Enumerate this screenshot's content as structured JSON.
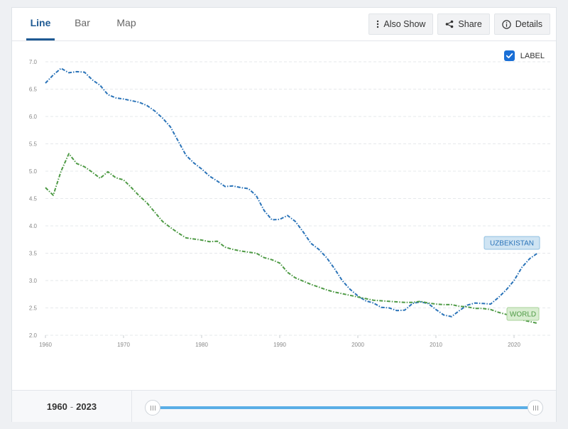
{
  "tabs": [
    {
      "label": "Line",
      "active": true
    },
    {
      "label": "Bar",
      "active": false
    },
    {
      "label": "Map",
      "active": false
    }
  ],
  "actions": {
    "also_show": "Also Show",
    "share": "Share",
    "details": "Details"
  },
  "label_toggle": {
    "text": "LABEL",
    "checked": true
  },
  "range": {
    "start": "1960",
    "end": "2023",
    "separator": "-"
  },
  "chart_data": {
    "type": "line",
    "title": "",
    "xlabel": "",
    "ylabel": "",
    "xlim": [
      1960,
      2023
    ],
    "ylim": [
      2.0,
      7.0
    ],
    "x_ticks": [
      "1960",
      "1970",
      "1980",
      "1990",
      "2000",
      "2010",
      "2020"
    ],
    "y_ticks": [
      "2.0",
      "2.5",
      "3.0",
      "3.5",
      "4.0",
      "4.5",
      "5.0",
      "5.5",
      "6.0",
      "6.5",
      "7.0"
    ],
    "grid": true,
    "legend": "inline labels at line ends",
    "x": [
      1960,
      1961,
      1962,
      1963,
      1964,
      1965,
      1966,
      1967,
      1968,
      1969,
      1970,
      1971,
      1972,
      1973,
      1974,
      1975,
      1976,
      1977,
      1978,
      1979,
      1980,
      1981,
      1982,
      1983,
      1984,
      1985,
      1986,
      1987,
      1988,
      1989,
      1990,
      1991,
      1992,
      1993,
      1994,
      1995,
      1996,
      1997,
      1998,
      1999,
      2000,
      2001,
      2002,
      2003,
      2004,
      2005,
      2006,
      2007,
      2008,
      2009,
      2010,
      2011,
      2012,
      2013,
      2014,
      2015,
      2016,
      2017,
      2018,
      2019,
      2020,
      2021,
      2022,
      2023
    ],
    "series": [
      {
        "name": "UZBEKISTAN",
        "color": "#2a73b8",
        "label_bg": "#cfe4f3",
        "label_border": "#8fbfe0",
        "label_text": "#2a73b8",
        "values": [
          6.61,
          6.76,
          6.88,
          6.8,
          6.82,
          6.81,
          6.67,
          6.57,
          6.4,
          6.34,
          6.32,
          6.29,
          6.26,
          6.2,
          6.1,
          5.97,
          5.81,
          5.55,
          5.29,
          5.15,
          5.04,
          4.91,
          4.82,
          4.72,
          4.73,
          4.7,
          4.68,
          4.55,
          4.28,
          4.11,
          4.12,
          4.19,
          4.08,
          3.89,
          3.68,
          3.57,
          3.42,
          3.22,
          3.0,
          2.84,
          2.72,
          2.63,
          2.59,
          2.51,
          2.5,
          2.45,
          2.46,
          2.58,
          2.61,
          2.58,
          2.47,
          2.37,
          2.34,
          2.45,
          2.55,
          2.59,
          2.58,
          2.57,
          2.69,
          2.83,
          3.0,
          3.24,
          3.4,
          3.5
        ]
      },
      {
        "name": "WORLD",
        "color": "#4e9a45",
        "label_bg": "#d8edd0",
        "label_border": "#a8d29a",
        "label_text": "#4e9a45",
        "values": [
          4.7,
          4.56,
          5.0,
          5.32,
          5.14,
          5.08,
          4.98,
          4.87,
          4.99,
          4.88,
          4.84,
          4.7,
          4.55,
          4.42,
          4.25,
          4.08,
          3.97,
          3.87,
          3.78,
          3.76,
          3.74,
          3.71,
          3.72,
          3.61,
          3.57,
          3.54,
          3.52,
          3.5,
          3.42,
          3.38,
          3.32,
          3.15,
          3.05,
          2.99,
          2.93,
          2.88,
          2.83,
          2.79,
          2.76,
          2.73,
          2.7,
          2.67,
          2.64,
          2.63,
          2.62,
          2.61,
          2.6,
          2.6,
          2.62,
          2.59,
          2.57,
          2.56,
          2.56,
          2.53,
          2.52,
          2.49,
          2.49,
          2.47,
          2.42,
          2.38,
          2.33,
          2.28,
          2.25,
          2.22
        ]
      }
    ]
  }
}
